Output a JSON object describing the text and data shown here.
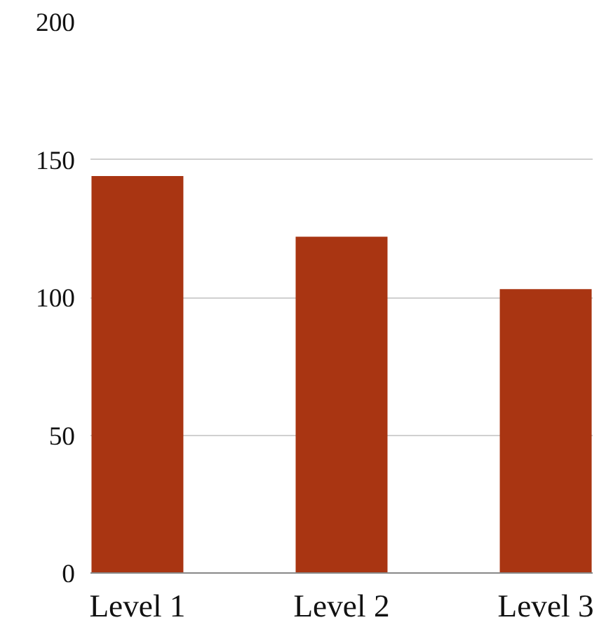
{
  "chart_data": {
    "type": "bar",
    "categories": [
      "Level 1",
      "Level 2",
      "Level 3"
    ],
    "values": [
      144,
      122,
      103
    ],
    "color": "#a93512",
    "ylim": [
      0,
      200
    ],
    "yticks": [
      0,
      50,
      100,
      150,
      200
    ],
    "grid": "y"
  }
}
